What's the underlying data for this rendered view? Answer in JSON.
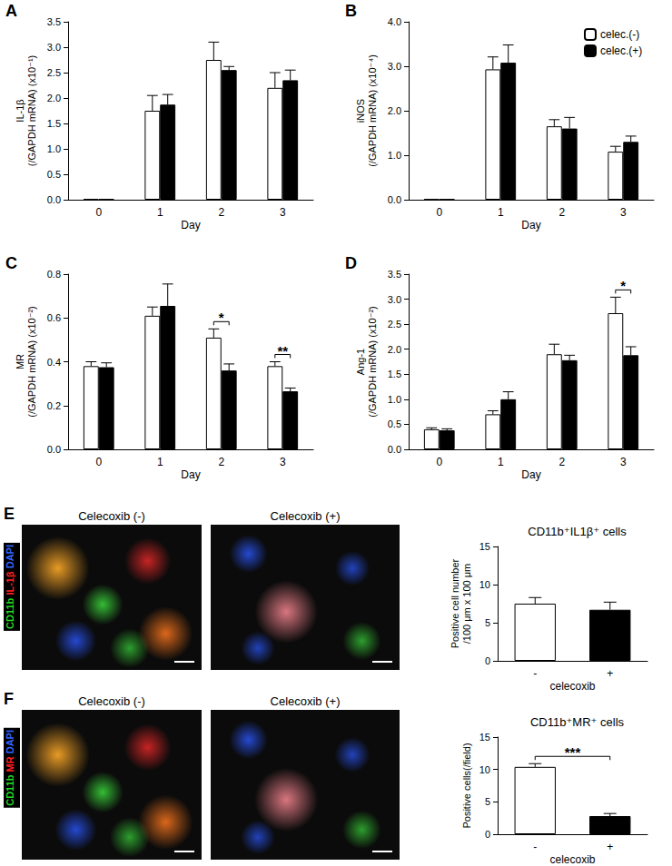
{
  "chart_data": [
    {
      "panel": "A",
      "type": "bar",
      "categories": [
        "0",
        "1",
        "2",
        "3"
      ],
      "xlabel": "Day",
      "ylabel": "IL-1β\n(/GAPDH mRNA) (x10⁻¹)",
      "ylim": [
        0,
        3.5
      ],
      "yticks": [
        {
          "value": 0,
          "label": "0.0"
        },
        0.5,
        {
          "value": 1,
          "label": "1.0"
        },
        1.5,
        {
          "value": 2,
          "label": "2.0"
        },
        2.5,
        {
          "value": 3,
          "label": "3.0"
        },
        3.5
      ],
      "grid": false,
      "series": [
        {
          "name": "celec.(-)",
          "color": "#ffffff",
          "values": [
            0.01,
            1.75,
            2.75,
            2.2
          ],
          "errors": [
            0,
            0.3,
            0.35,
            0.3
          ]
        },
        {
          "name": "celec.(+)",
          "color": "#000000",
          "values": [
            0.01,
            1.87,
            2.55,
            2.35
          ],
          "errors": [
            0,
            0.2,
            0.07,
            0.2
          ]
        }
      ]
    },
    {
      "panel": "B",
      "type": "bar",
      "categories": [
        "0",
        "1",
        "2",
        "3"
      ],
      "xlabel": "Day",
      "ylabel": "iNOS\n(/GAPDH mRNA) (x10⁻⁴)",
      "ylim": [
        0,
        4
      ],
      "yticks": [
        {
          "value": 0,
          "label": "0.0"
        },
        {
          "value": 1,
          "label": "1.0"
        },
        {
          "value": 2,
          "label": "2.0"
        },
        {
          "value": 3,
          "label": "3.0"
        },
        {
          "value": 4,
          "label": "4.0"
        }
      ],
      "grid": false,
      "legend": "upper right",
      "series": [
        {
          "name": "celec.(-)",
          "color": "#ffffff",
          "values": [
            0.01,
            2.93,
            1.65,
            1.08
          ],
          "errors": [
            0,
            0.28,
            0.15,
            0.12
          ]
        },
        {
          "name": "celec.(+)",
          "color": "#000000",
          "values": [
            0.01,
            3.08,
            1.6,
            1.3
          ],
          "errors": [
            0,
            0.4,
            0.25,
            0.13
          ]
        }
      ]
    },
    {
      "panel": "C",
      "type": "bar",
      "categories": [
        "0",
        "1",
        "2",
        "3"
      ],
      "xlabel": "Day",
      "ylabel": "MR\n(/GAPDH mRNA) (x10⁻²)",
      "ylim": [
        0,
        0.8
      ],
      "yticks": [
        {
          "value": 0,
          "label": "0.0"
        },
        0.2,
        0.4,
        0.6,
        0.8
      ],
      "grid": false,
      "series": [
        {
          "name": "celec.(-)",
          "color": "#ffffff",
          "values": [
            0.38,
            0.61,
            0.51,
            0.38
          ],
          "errors": [
            0.02,
            0.04,
            0.04,
            0.02
          ]
        },
        {
          "name": "celec.(+)",
          "color": "#000000",
          "values": [
            0.375,
            0.655,
            0.36,
            0.265
          ],
          "errors": [
            0.02,
            0.1,
            0.03,
            0.015
          ]
        }
      ],
      "annotations": [
        {
          "category": "2",
          "text": "*"
        },
        {
          "category": "3",
          "text": "**"
        }
      ]
    },
    {
      "panel": "D",
      "type": "bar",
      "categories": [
        "0",
        "1",
        "2",
        "3"
      ],
      "xlabel": "Day",
      "ylabel": "Ang-1\n(/GAPDH mRNA) (x10⁻²)",
      "ylim": [
        0,
        3.5
      ],
      "yticks": [
        {
          "value": 0,
          "label": "0.0"
        },
        0.5,
        {
          "value": 1,
          "label": "1.0"
        },
        1.5,
        {
          "value": 2,
          "label": "2.0"
        },
        2.5,
        {
          "value": 3,
          "label": "3.0"
        },
        3.5
      ],
      "grid": false,
      "series": [
        {
          "name": "celec.(-)",
          "color": "#ffffff",
          "values": [
            0.4,
            0.7,
            1.9,
            2.72
          ],
          "errors": [
            0.03,
            0.07,
            0.2,
            0.32
          ]
        },
        {
          "name": "celec.(+)",
          "color": "#000000",
          "values": [
            0.38,
            1.0,
            1.78,
            1.88
          ],
          "errors": [
            0.03,
            0.15,
            0.1,
            0.17
          ]
        }
      ],
      "annotations": [
        {
          "category": "3",
          "text": "*"
        }
      ]
    },
    {
      "panel": "E",
      "type": "bar",
      "title": "CD11b⁺IL1β⁺ cells",
      "categories": [
        "-",
        "+"
      ],
      "xlabel": "celecoxib",
      "ylabel": "Positive cell number\n/100 μm x 100 μm",
      "ylim": [
        0,
        15
      ],
      "yticks": [
        0,
        5,
        10,
        15
      ],
      "grid": false,
      "series": [
        {
          "colors": [
            "#ffffff",
            "#000000"
          ],
          "values": [
            7.5,
            6.7
          ],
          "errors": [
            0.8,
            1.0
          ]
        }
      ]
    },
    {
      "panel": "F",
      "type": "bar",
      "title": "CD11b⁺MR⁺ cells",
      "categories": [
        "-",
        "+"
      ],
      "xlabel": "celecoxib",
      "ylabel": "Positive cells(/field)",
      "ylim": [
        0,
        15
      ],
      "yticks": [
        0,
        5,
        10,
        15
      ],
      "grid": false,
      "series": [
        {
          "colors": [
            "#ffffff",
            "#000000"
          ],
          "values": [
            10.4,
            2.8
          ],
          "errors": [
            0.5,
            0.4
          ]
        }
      ],
      "annotations": [
        {
          "categories": [
            "-",
            "+"
          ],
          "text": "***"
        }
      ]
    }
  ],
  "images": [
    {
      "panel": "E",
      "titles": [
        "Celecoxib (-)",
        "Celecoxib (+)"
      ],
      "channels": [
        {
          "name": "CD11b",
          "color": "#22dd22"
        },
        {
          "name": "IL-1β",
          "color": "#ff2222"
        },
        {
          "name": "DAPI",
          "color": "#3366ff"
        }
      ]
    },
    {
      "panel": "F",
      "titles": [
        "Celecoxib (-)",
        "Celecoxib (+)"
      ],
      "channels": [
        {
          "name": "CD11b",
          "color": "#22dd22"
        },
        {
          "name": "MR",
          "color": "#ff2222"
        },
        {
          "name": "DAPI",
          "color": "#3366ff"
        }
      ]
    }
  ]
}
